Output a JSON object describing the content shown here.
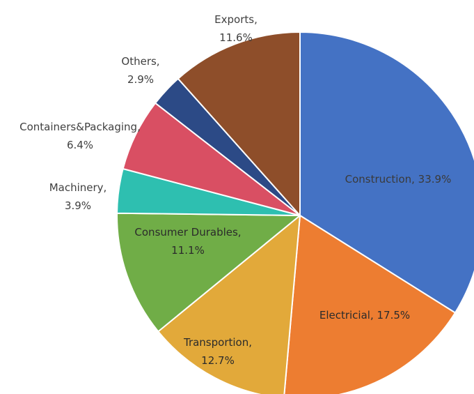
{
  "chart_data": {
    "type": "pie",
    "title": "",
    "slices": [
      {
        "name": "Construction",
        "value": 33.9,
        "label_line1": "Construction, 33.9%",
        "label_line2": "",
        "color": "#4472C4",
        "label_color": "#3a3a3a"
      },
      {
        "name": "Electricial",
        "value": 17.5,
        "label_line1": "Electricial, 17.5%",
        "label_line2": "",
        "color": "#ED7D31",
        "label_color": "#2b2b2b"
      },
      {
        "name": "Transportion",
        "value": 12.7,
        "label_line1": "Transportion,",
        "label_line2": "12.7%",
        "color": "#E2A93A",
        "label_color": "#2b2b2b"
      },
      {
        "name": "Consumer Durables",
        "value": 11.1,
        "label_line1": "Consumer Durables,",
        "label_line2": "11.1%",
        "color": "#70AD47",
        "label_color": "#2b2b2b"
      },
      {
        "name": "Machinery",
        "value": 3.9,
        "label_line1": "Machinery,",
        "label_line2": "3.9%",
        "color": "#2EBFB0",
        "label_color": "#404040"
      },
      {
        "name": "Containers&Packaging",
        "value": 6.4,
        "label_line1": "Containers&Packaging,",
        "label_line2": "6.4%",
        "color": "#D94F63",
        "label_color": "#404040"
      },
      {
        "name": "Others",
        "value": 2.9,
        "label_line1": "Others,",
        "label_line2": "2.9%",
        "color": "#2C4A86",
        "label_color": "#404040"
      },
      {
        "name": "Exports",
        "value": 11.6,
        "label_line1": "Exports,",
        "label_line2": "11.6%",
        "color": "#8E4E2A",
        "label_color": "#404040"
      }
    ],
    "start_angle_deg": 0,
    "direction": "clockwise",
    "slice_border_color": "#ffffff"
  }
}
